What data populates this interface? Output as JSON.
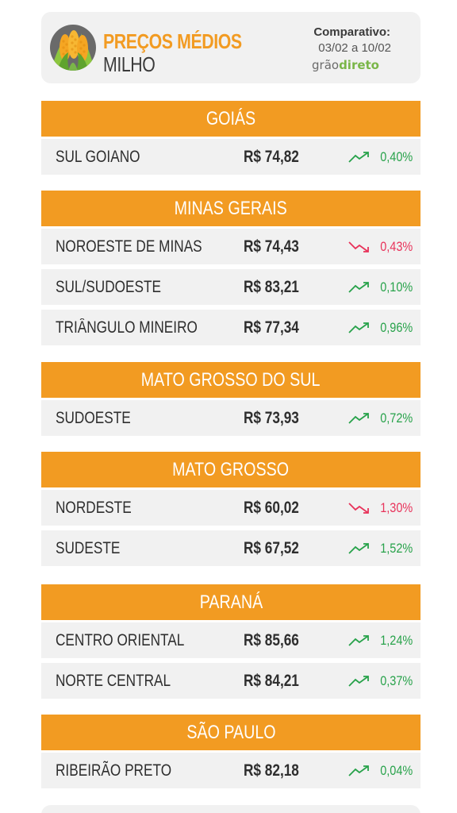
{
  "header": {
    "title_line1": "PREÇOS MÉDIOS",
    "title_line2": "MILHO",
    "comparison_label": "Comparativo:",
    "comparison_dates": "03/02 a 10/02",
    "brand_part1": "grão",
    "brand_part2": "direto"
  },
  "colors": {
    "accent": "#f29b22",
    "up": "#27a24a",
    "down": "#e8325a",
    "row_bg": "#f1f1f1"
  },
  "regions": [
    {
      "name": "GOIÁS",
      "rows": [
        {
          "name": "SUL GOIANO",
          "price": "R$ 74,82",
          "change": "0,40%",
          "direction": "up"
        }
      ]
    },
    {
      "name": "MINAS GERAIS",
      "rows": [
        {
          "name": "NOROESTE DE MINAS",
          "price": "R$ 74,43",
          "change": "0,43%",
          "direction": "down"
        },
        {
          "name": "SUL/SUDOESTE",
          "price": "R$ 83,21",
          "change": "0,10%",
          "direction": "up"
        },
        {
          "name": "TRIÂNGULO MINEIRO",
          "price": "R$ 77,34",
          "change": "0,96%",
          "direction": "up"
        }
      ]
    },
    {
      "name": "MATO GROSSO DO SUL",
      "rows": [
        {
          "name": "SUDOESTE",
          "price": "R$ 73,93",
          "change": "0,72%",
          "direction": "up"
        }
      ]
    },
    {
      "name": "MATO GROSSO",
      "rows": [
        {
          "name": "NORDESTE",
          "price": "R$ 60,02",
          "change": "1,30%",
          "direction": "down"
        },
        {
          "name": "SUDESTE",
          "price": "R$ 67,52",
          "change": "1,52%",
          "direction": "up"
        }
      ]
    },
    {
      "name": "PARANÁ",
      "rows": [
        {
          "name": "CENTRO ORIENTAL",
          "price": "R$ 85,66",
          "change": "1,24%",
          "direction": "up"
        },
        {
          "name": "NORTE CENTRAL",
          "price": "R$ 84,21",
          "change": "0,37%",
          "direction": "up"
        }
      ]
    },
    {
      "name": "SÃO PAULO",
      "rows": [
        {
          "name": "RIBEIRÃO PRETO",
          "price": "R$ 82,18",
          "change": "0,04%",
          "direction": "up"
        }
      ]
    }
  ]
}
